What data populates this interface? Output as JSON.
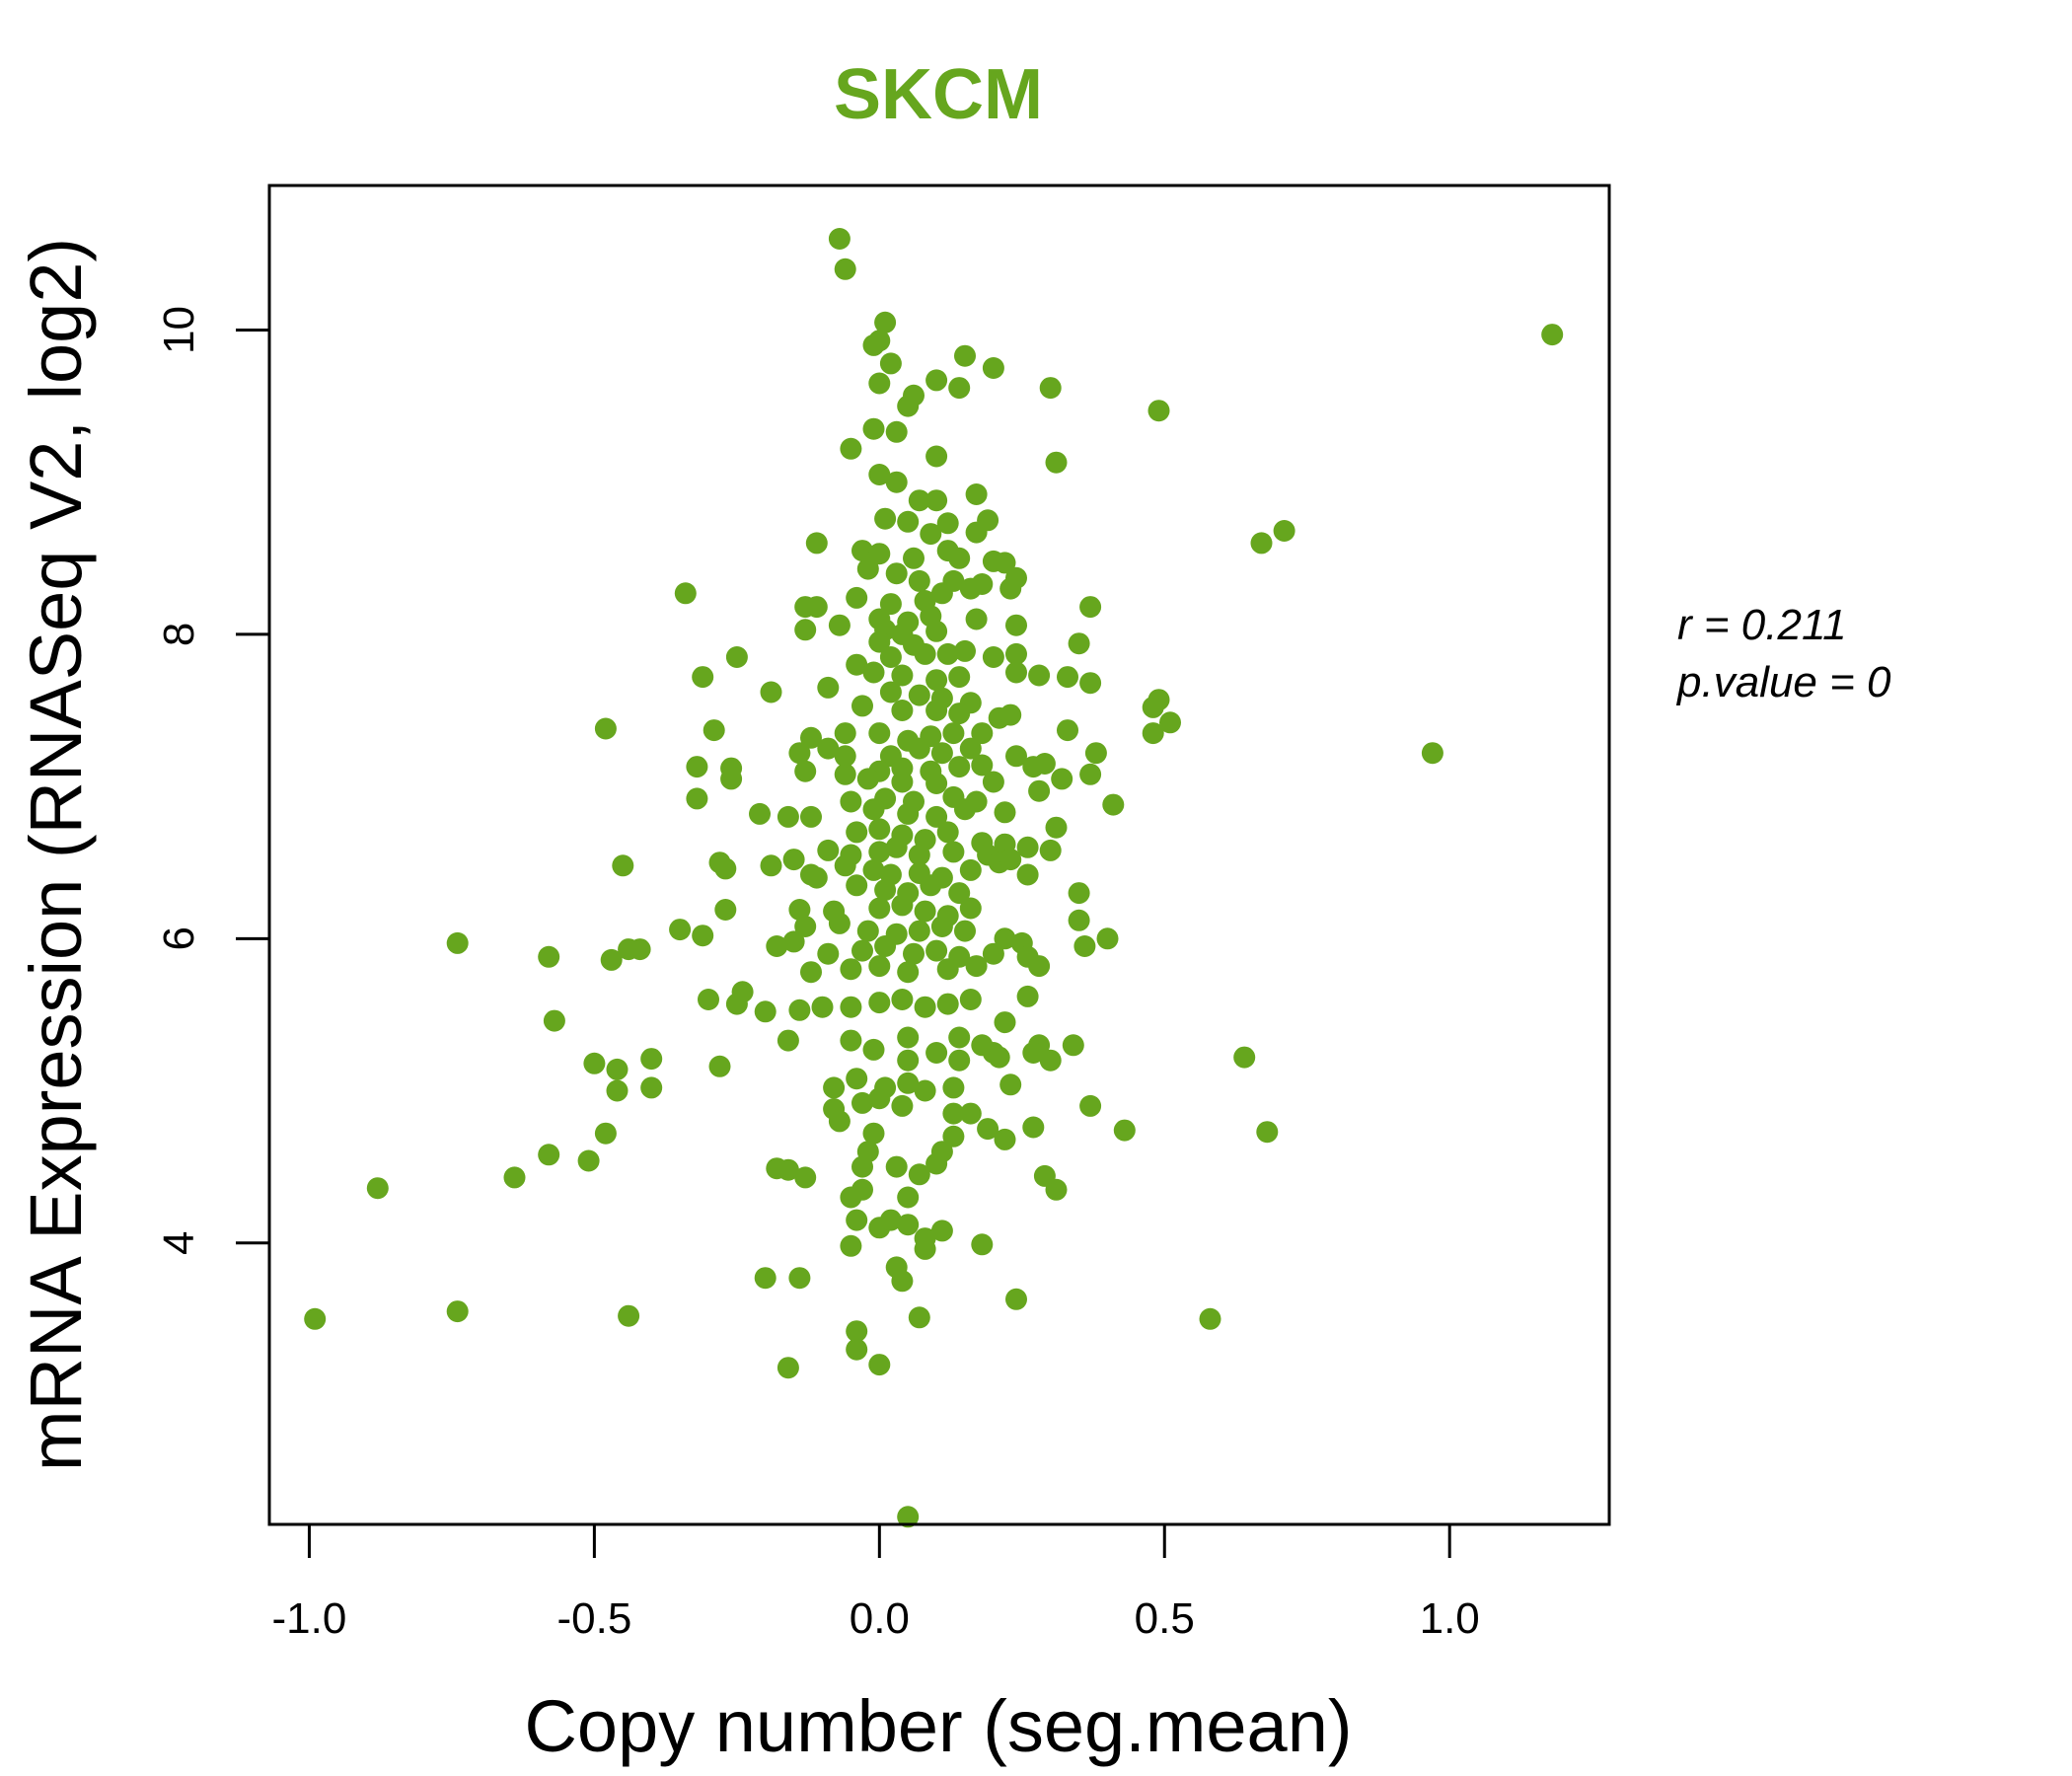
{
  "chart_data": {
    "type": "scatter",
    "title": "SKCM",
    "xlabel": "Copy number (seg.mean)",
    "ylabel": "mRNA Expression (RNASeq V2, log2)",
    "xlim": [
      -1.07,
      1.28
    ],
    "ylim": [
      2.15,
      10.95
    ],
    "xticks": [
      -1.0,
      -0.5,
      0.0,
      0.5,
      1.0
    ],
    "xtick_labels": [
      "-1.0",
      "-0.5",
      "0.0",
      "0.5",
      "1.0"
    ],
    "yticks": [
      4,
      6,
      8,
      10
    ],
    "ytick_labels": [
      "4",
      "6",
      "8",
      "10"
    ],
    "grid": false,
    "color": "#66A61E",
    "annotations": {
      "r_label": "r = 0.211",
      "p_label": "p.value = 0"
    },
    "points": [
      [
        -0.07,
        10.6
      ],
      [
        -0.06,
        10.4
      ],
      [
        0.01,
        10.05
      ],
      [
        0.0,
        9.93
      ],
      [
        -0.01,
        9.9
      ],
      [
        0.02,
        9.78
      ],
      [
        0.15,
        9.83
      ],
      [
        0.2,
        9.75
      ],
      [
        0.1,
        9.67
      ],
      [
        0.14,
        9.62
      ],
      [
        0.3,
        9.62
      ],
      [
        0.06,
        9.57
      ],
      [
        0.05,
        9.5
      ],
      [
        0.0,
        9.65
      ],
      [
        0.49,
        9.47
      ],
      [
        1.18,
        9.97
      ],
      [
        -0.01,
        9.35
      ],
      [
        0.03,
        9.33
      ],
      [
        -0.05,
        9.22
      ],
      [
        0.1,
        9.17
      ],
      [
        0.31,
        9.13
      ],
      [
        0.0,
        9.05
      ],
      [
        0.03,
        9.0
      ],
      [
        0.07,
        8.88
      ],
      [
        0.1,
        8.88
      ],
      [
        0.17,
        8.92
      ],
      [
        0.01,
        8.76
      ],
      [
        0.05,
        8.74
      ],
      [
        0.12,
        8.73
      ],
      [
        0.19,
        8.75
      ],
      [
        0.09,
        8.66
      ],
      [
        0.17,
        8.67
      ],
      [
        0.67,
        8.6
      ],
      [
        0.71,
        8.68
      ],
      [
        -0.11,
        8.6
      ],
      [
        -0.03,
        8.55
      ],
      [
        0.0,
        8.53
      ],
      [
        0.06,
        8.5
      ],
      [
        0.12,
        8.55
      ],
      [
        0.14,
        8.5
      ],
      [
        0.2,
        8.48
      ],
      [
        0.22,
        8.47
      ],
      [
        -0.02,
        8.43
      ],
      [
        0.03,
        8.4
      ],
      [
        0.07,
        8.35
      ],
      [
        0.13,
        8.35
      ],
      [
        0.18,
        8.33
      ],
      [
        0.24,
        8.37
      ],
      [
        -0.34,
        8.27
      ],
      [
        -0.04,
        8.24
      ],
      [
        0.02,
        8.2
      ],
      [
        0.08,
        8.22
      ],
      [
        0.11,
        8.27
      ],
      [
        0.16,
        8.3
      ],
      [
        0.23,
        8.3
      ],
      [
        -0.13,
        8.18
      ],
      [
        -0.11,
        8.18
      ],
      [
        0.37,
        8.18
      ],
      [
        0.0,
        8.1
      ],
      [
        0.05,
        8.08
      ],
      [
        0.09,
        8.12
      ],
      [
        0.17,
        8.1
      ],
      [
        0.24,
        8.06
      ],
      [
        -0.13,
        8.03
      ],
      [
        -0.07,
        8.06
      ],
      [
        0.01,
        8.03
      ],
      [
        0.04,
        8.0
      ],
      [
        0.1,
        8.02
      ],
      [
        0.0,
        7.95
      ],
      [
        0.06,
        7.93
      ],
      [
        0.12,
        7.87
      ],
      [
        0.35,
        7.94
      ],
      [
        -0.25,
        7.85
      ],
      [
        -0.04,
        7.8
      ],
      [
        0.02,
        7.85
      ],
      [
        0.08,
        7.87
      ],
      [
        0.15,
        7.89
      ],
      [
        0.2,
        7.85
      ],
      [
        0.24,
        7.87
      ],
      [
        -0.31,
        7.72
      ],
      [
        -0.01,
        7.75
      ],
      [
        0.04,
        7.73
      ],
      [
        0.1,
        7.7
      ],
      [
        0.14,
        7.72
      ],
      [
        0.24,
        7.75
      ],
      [
        0.28,
        7.73
      ],
      [
        0.33,
        7.72
      ],
      [
        0.37,
        7.68
      ],
      [
        -0.19,
        7.62
      ],
      [
        -0.09,
        7.65
      ],
      [
        0.02,
        7.62
      ],
      [
        0.07,
        7.6
      ],
      [
        0.11,
        7.58
      ],
      [
        0.16,
        7.55
      ],
      [
        0.49,
        7.57
      ],
      [
        -0.03,
        7.53
      ],
      [
        0.04,
        7.5
      ],
      [
        0.1,
        7.5
      ],
      [
        0.14,
        7.48
      ],
      [
        0.21,
        7.45
      ],
      [
        0.23,
        7.47
      ],
      [
        0.48,
        7.52
      ],
      [
        0.51,
        7.42
      ],
      [
        -0.48,
        7.38
      ],
      [
        -0.29,
        7.37
      ],
      [
        -0.12,
        7.32
      ],
      [
        -0.06,
        7.35
      ],
      [
        0.0,
        7.35
      ],
      [
        0.05,
        7.3
      ],
      [
        0.09,
        7.33
      ],
      [
        0.13,
        7.35
      ],
      [
        0.18,
        7.35
      ],
      [
        0.33,
        7.37
      ],
      [
        0.48,
        7.35
      ],
      [
        -0.14,
        7.22
      ],
      [
        -0.09,
        7.25
      ],
      [
        -0.06,
        7.2
      ],
      [
        0.02,
        7.2
      ],
      [
        0.07,
        7.25
      ],
      [
        0.11,
        7.22
      ],
      [
        0.16,
        7.25
      ],
      [
        0.24,
        7.2
      ],
      [
        0.38,
        7.22
      ],
      [
        0.97,
        7.22
      ],
      [
        -0.32,
        7.13
      ],
      [
        -0.26,
        7.12
      ],
      [
        -0.13,
        7.1
      ],
      [
        -0.06,
        7.08
      ],
      [
        0.0,
        7.1
      ],
      [
        0.04,
        7.12
      ],
      [
        0.09,
        7.1
      ],
      [
        0.14,
        7.13
      ],
      [
        0.18,
        7.14
      ],
      [
        0.27,
        7.13
      ],
      [
        0.29,
        7.15
      ],
      [
        -0.26,
        7.05
      ],
      [
        -0.02,
        7.05
      ],
      [
        0.04,
        7.03
      ],
      [
        0.1,
        7.02
      ],
      [
        0.2,
        7.03
      ],
      [
        0.32,
        7.05
      ],
      [
        0.37,
        7.08
      ],
      [
        -0.32,
        6.92
      ],
      [
        -0.05,
        6.9
      ],
      [
        0.01,
        6.92
      ],
      [
        0.06,
        6.9
      ],
      [
        0.13,
        6.93
      ],
      [
        0.17,
        6.9
      ],
      [
        0.28,
        6.97
      ],
      [
        0.41,
        6.88
      ],
      [
        -0.21,
        6.82
      ],
      [
        -0.16,
        6.8
      ],
      [
        -0.12,
        6.8
      ],
      [
        -0.01,
        6.85
      ],
      [
        0.05,
        6.82
      ],
      [
        0.1,
        6.8
      ],
      [
        0.15,
        6.85
      ],
      [
        0.22,
        6.83
      ],
      [
        0.31,
        6.73
      ],
      [
        -0.04,
        6.7
      ],
      [
        0.0,
        6.72
      ],
      [
        0.04,
        6.68
      ],
      [
        0.08,
        6.65
      ],
      [
        0.12,
        6.7
      ],
      [
        0.18,
        6.63
      ],
      [
        0.22,
        6.62
      ],
      [
        0.26,
        6.6
      ],
      [
        -0.09,
        6.58
      ],
      [
        -0.05,
        6.55
      ],
      [
        0.0,
        6.57
      ],
      [
        0.03,
        6.6
      ],
      [
        0.07,
        6.55
      ],
      [
        0.13,
        6.57
      ],
      [
        0.19,
        6.55
      ],
      [
        0.3,
        6.58
      ],
      [
        -0.45,
        6.48
      ],
      [
        -0.28,
        6.5
      ],
      [
        -0.27,
        6.46
      ],
      [
        -0.19,
        6.48
      ],
      [
        -0.15,
        6.52
      ],
      [
        -0.12,
        6.42
      ],
      [
        -0.06,
        6.48
      ],
      [
        -0.01,
        6.45
      ],
      [
        0.02,
        6.42
      ],
      [
        0.07,
        6.43
      ],
      [
        0.11,
        6.4
      ],
      [
        0.16,
        6.45
      ],
      [
        0.21,
        6.5
      ],
      [
        0.23,
        6.52
      ],
      [
        0.26,
        6.42
      ],
      [
        -0.11,
        6.4
      ],
      [
        -0.04,
        6.35
      ],
      [
        0.01,
        6.32
      ],
      [
        0.05,
        6.3
      ],
      [
        0.09,
        6.35
      ],
      [
        0.14,
        6.3
      ],
      [
        0.35,
        6.3
      ],
      [
        -0.27,
        6.19
      ],
      [
        -0.14,
        6.19
      ],
      [
        -0.08,
        6.18
      ],
      [
        0.0,
        6.2
      ],
      [
        0.04,
        6.22
      ],
      [
        0.08,
        6.18
      ],
      [
        0.12,
        6.15
      ],
      [
        0.16,
        6.2
      ],
      [
        -0.35,
        6.06
      ],
      [
        -0.31,
        6.02
      ],
      [
        -0.13,
        6.08
      ],
      [
        -0.07,
        6.1
      ],
      [
        -0.02,
        6.05
      ],
      [
        0.03,
        6.03
      ],
      [
        0.07,
        6.05
      ],
      [
        0.11,
        6.08
      ],
      [
        0.15,
        6.05
      ],
      [
        0.22,
        6.0
      ],
      [
        0.25,
        5.97
      ],
      [
        0.35,
        6.12
      ],
      [
        0.4,
        6.0
      ],
      [
        -0.74,
        5.97
      ],
      [
        -0.58,
        5.88
      ],
      [
        -0.47,
        5.86
      ],
      [
        -0.44,
        5.93
      ],
      [
        -0.42,
        5.93
      ],
      [
        -0.18,
        5.95
      ],
      [
        -0.15,
        5.98
      ],
      [
        -0.09,
        5.9
      ],
      [
        -0.03,
        5.92
      ],
      [
        0.01,
        5.95
      ],
      [
        0.06,
        5.9
      ],
      [
        0.1,
        5.92
      ],
      [
        0.14,
        5.88
      ],
      [
        0.2,
        5.9
      ],
      [
        0.26,
        5.88
      ],
      [
        0.36,
        5.95
      ],
      [
        -0.12,
        5.78
      ],
      [
        -0.05,
        5.8
      ],
      [
        0.0,
        5.82
      ],
      [
        0.05,
        5.78
      ],
      [
        0.12,
        5.8
      ],
      [
        0.17,
        5.82
      ],
      [
        0.28,
        5.82
      ],
      [
        -0.3,
        5.6
      ],
      [
        -0.24,
        5.65
      ],
      [
        -0.25,
        5.57
      ],
      [
        -0.2,
        5.52
      ],
      [
        -0.14,
        5.53
      ],
      [
        -0.1,
        5.55
      ],
      [
        -0.05,
        5.55
      ],
      [
        0.0,
        5.58
      ],
      [
        0.04,
        5.6
      ],
      [
        0.08,
        5.55
      ],
      [
        0.12,
        5.57
      ],
      [
        0.16,
        5.6
      ],
      [
        0.26,
        5.62
      ],
      [
        -0.57,
        5.46
      ],
      [
        -0.16,
        5.33
      ],
      [
        -0.05,
        5.33
      ],
      [
        0.05,
        5.35
      ],
      [
        0.14,
        5.35
      ],
      [
        0.18,
        5.3
      ],
      [
        0.2,
        5.25
      ],
      [
        0.22,
        5.45
      ],
      [
        0.28,
        5.3
      ],
      [
        0.34,
        5.3
      ],
      [
        0.64,
        5.22
      ],
      [
        -0.5,
        5.18
      ],
      [
        -0.46,
        5.14
      ],
      [
        -0.4,
        5.21
      ],
      [
        -0.28,
        5.16
      ],
      [
        -0.01,
        5.27
      ],
      [
        0.05,
        5.2
      ],
      [
        0.1,
        5.25
      ],
      [
        0.14,
        5.2
      ],
      [
        0.21,
        5.22
      ],
      [
        0.27,
        5.25
      ],
      [
        0.3,
        5.2
      ],
      [
        -0.46,
        5.0
      ],
      [
        -0.4,
        5.02
      ],
      [
        -0.08,
        5.02
      ],
      [
        -0.04,
        5.08
      ],
      [
        0.01,
        5.02
      ],
      [
        0.05,
        5.05
      ],
      [
        0.08,
        5.0
      ],
      [
        0.13,
        5.02
      ],
      [
        0.23,
        5.04
      ],
      [
        -0.08,
        4.88
      ],
      [
        -0.03,
        4.92
      ],
      [
        0.0,
        4.95
      ],
      [
        0.04,
        4.9
      ],
      [
        0.13,
        4.85
      ],
      [
        0.16,
        4.85
      ],
      [
        0.37,
        4.9
      ],
      [
        -0.48,
        4.72
      ],
      [
        -0.07,
        4.8
      ],
      [
        -0.01,
        4.72
      ],
      [
        0.13,
        4.7
      ],
      [
        0.19,
        4.75
      ],
      [
        0.22,
        4.68
      ],
      [
        0.27,
        4.76
      ],
      [
        0.43,
        4.74
      ],
      [
        0.68,
        4.73
      ],
      [
        -0.58,
        4.58
      ],
      [
        -0.51,
        4.54
      ],
      [
        -0.02,
        4.6
      ],
      [
        0.11,
        4.6
      ],
      [
        -0.64,
        4.43
      ],
      [
        -0.18,
        4.49
      ],
      [
        -0.16,
        4.48
      ],
      [
        -0.13,
        4.43
      ],
      [
        -0.03,
        4.5
      ],
      [
        0.03,
        4.5
      ],
      [
        0.07,
        4.45
      ],
      [
        0.1,
        4.52
      ],
      [
        0.29,
        4.44
      ],
      [
        -0.88,
        4.36
      ],
      [
        -0.05,
        4.3
      ],
      [
        -0.03,
        4.35
      ],
      [
        0.05,
        4.3
      ],
      [
        0.31,
        4.35
      ],
      [
        -0.04,
        4.15
      ],
      [
        0.0,
        4.1
      ],
      [
        0.02,
        4.15
      ],
      [
        0.05,
        4.12
      ],
      [
        0.11,
        4.08
      ],
      [
        0.08,
        4.03
      ],
      [
        -0.05,
        3.98
      ],
      [
        0.08,
        3.96
      ],
      [
        0.18,
        3.99
      ],
      [
        -0.2,
        3.77
      ],
      [
        -0.14,
        3.77
      ],
      [
        0.03,
        3.84
      ],
      [
        0.04,
        3.75
      ],
      [
        0.24,
        3.63
      ],
      [
        -0.99,
        3.5
      ],
      [
        -0.74,
        3.55
      ],
      [
        -0.44,
        3.52
      ],
      [
        0.07,
        3.51
      ],
      [
        0.58,
        3.5
      ],
      [
        -0.04,
        3.42
      ],
      [
        -0.04,
        3.3
      ],
      [
        0.0,
        3.2
      ],
      [
        -0.16,
        3.18
      ],
      [
        0.05,
        2.2
      ]
    ]
  }
}
